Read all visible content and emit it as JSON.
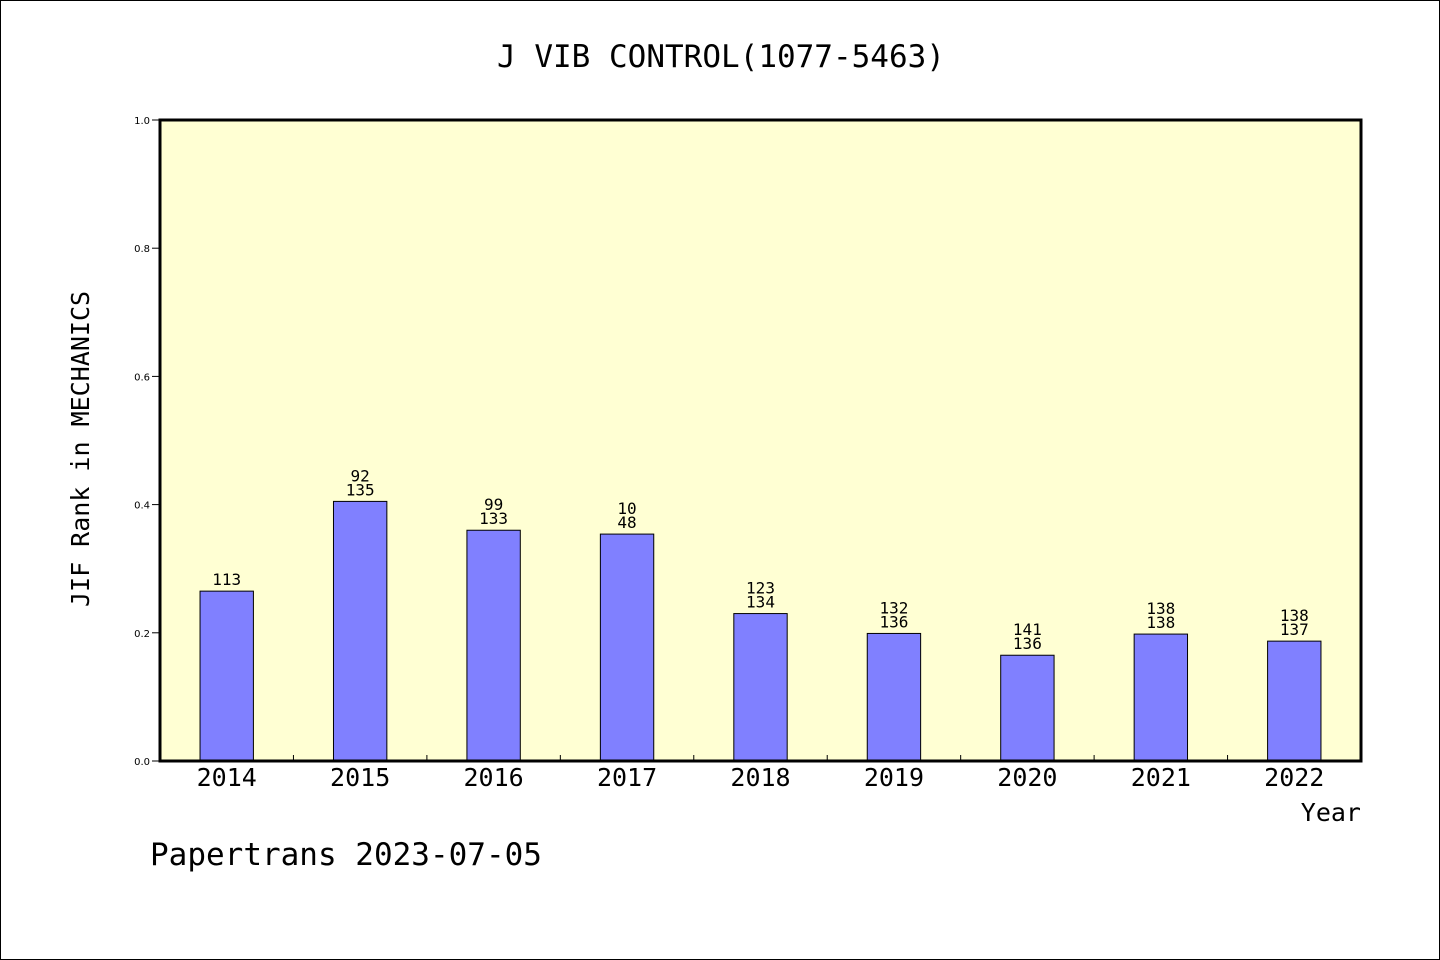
{
  "chart_data": {
    "type": "bar",
    "title": "J VIB CONTROL(1077-5463)",
    "xlabel": "Year",
    "ylabel": "JIF Rank in MECHANICS",
    "ylim": [
      0,
      1
    ],
    "yticks": [
      "0.0",
      "0.2",
      "0.4",
      "0.6",
      "0.8",
      "1.0"
    ],
    "categories": [
      "2014",
      "2015",
      "2016",
      "2017",
      "2018",
      "2019",
      "2020",
      "2021",
      "2022"
    ],
    "values": [
      0.265,
      0.405,
      0.36,
      0.354,
      0.23,
      0.199,
      0.165,
      0.198,
      0.187
    ],
    "labels_top": [
      "",
      "92",
      "99",
      "10",
      "123",
      "132",
      "141",
      "138",
      "138"
    ],
    "labels_bottom": [
      "113",
      "135",
      "133",
      "48",
      "134",
      "136",
      "136",
      "138",
      "137"
    ],
    "grid": false,
    "colors": {
      "plot_bg": "#ffffd3",
      "bar_fill": "#8080ff",
      "bar_stroke": "#000000"
    }
  },
  "footer": "Papertrans 2023-07-05"
}
